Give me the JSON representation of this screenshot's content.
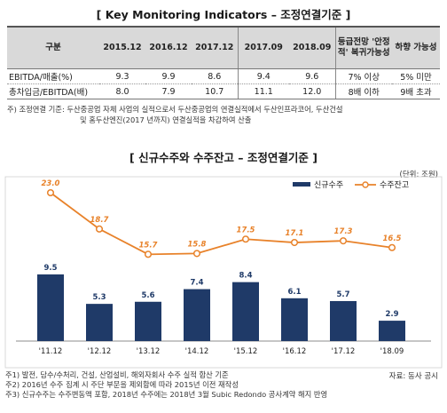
{
  "section1": {
    "title": "[ Key Monitoring Indicators – 조정연결기준 ]",
    "headers": [
      "구분",
      "2015.12",
      "2016.12",
      "2017.12",
      "2017.09",
      "2018.09",
      "등급전망 '안정적' 복귀가능성",
      "하향 가능성"
    ],
    "rows": [
      [
        "EBITDA/매출(%)",
        "9.3",
        "9.9",
        "8.6",
        "9.4",
        "9.6",
        "7% 이상",
        "5% 미만"
      ],
      [
        "총차입금/EBITDA(배)",
        "8.0",
        "7.9",
        "10.7",
        "11.1",
        "12.0",
        "8배 이하",
        "9배 초과"
      ]
    ],
    "note_line1": "주) 조정연결 기준: 두산중공업 자체 사업의 실적으로서 두산중공업의 연결실적에서 두산인프라코어, 두산건설",
    "note_line2": "및 홈두산엔진(2017 년까지) 연결실적을 차감하여 산출"
  },
  "section2": {
    "title": "[ 신규수주와 수주잔고 – 조정연결기준 ]",
    "unit": "(단위: 조원)",
    "notes": [
      "주1) 발전, 담수/수처리, 건설, 산업설비, 해외자회사 수주 실적 합산 기준",
      "주2) 2016년 수주 집계 시 주단 부문을 제외함에 따라 2015년 이전 재작성",
      "주3) 신규수주는 수주변동액 포함, 2018년 수주에는 2018년 3월 Subic Redondo 공사계약 해지 반영"
    ],
    "source": "자료: 동사 공시"
  },
  "chart_data": {
    "type": "bar",
    "categories": [
      "'11.12",
      "'12.12",
      "'13.12",
      "'14.12",
      "'15.12",
      "'16.12",
      "'17.12",
      "'18.09"
    ],
    "series": [
      {
        "name": "신규수주",
        "type": "bar",
        "color": "#1f3a68",
        "values": [
          9.5,
          5.3,
          5.6,
          7.4,
          8.4,
          6.1,
          5.7,
          2.9
        ],
        "labels": [
          "9.5",
          "5.3",
          "5.6",
          "7.4",
          "8.4",
          "6.1",
          "5.7",
          "2.9"
        ]
      },
      {
        "name": "수주잔고",
        "type": "line",
        "color": "#e8822a",
        "values": [
          23.0,
          18.7,
          15.7,
          15.8,
          17.5,
          17.1,
          17.3,
          16.5
        ],
        "labels": [
          "23.0",
          "18.7",
          "15.7",
          "15.8",
          "17.5",
          "17.1",
          "17.3",
          "16.5"
        ]
      }
    ],
    "legend_position": "top-right",
    "grid": false
  }
}
